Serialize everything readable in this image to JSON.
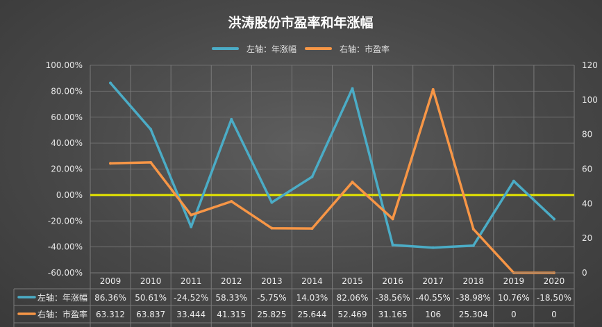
{
  "chart_data": {
    "type": "line",
    "title": "洪涛股份市盈率和年涨幅",
    "categories": [
      "2009",
      "2010",
      "2011",
      "2012",
      "2013",
      "2014",
      "2015",
      "2016",
      "2017",
      "2018",
      "2019",
      "2020"
    ],
    "series": [
      {
        "name": "左轴：年涨幅",
        "axis": "left",
        "color": "#4bacc6",
        "values": [
          86.36,
          50.61,
          -24.52,
          58.33,
          -5.75,
          14.03,
          82.06,
          -38.56,
          -40.55,
          -38.98,
          10.76,
          -18.5
        ],
        "labels": [
          "86.36%",
          "50.61%",
          "-24.52%",
          "58.33%",
          "-5.75%",
          "14.03%",
          "82.06%",
          "-38.56%",
          "-40.55%",
          "-38.98%",
          "10.76%",
          "-18.50%"
        ]
      },
      {
        "name": "右轴：市盈率",
        "axis": "right",
        "color": "#f79646",
        "values": [
          63.312,
          63.837,
          33.444,
          41.315,
          25.825,
          25.644,
          52.469,
          31.165,
          106,
          25.304,
          0,
          0
        ],
        "labels": [
          "63.312",
          "63.837",
          "33.444",
          "41.315",
          "25.825",
          "25.644",
          "52.469",
          "31.165",
          "106",
          "25.304",
          "0",
          "0"
        ]
      }
    ],
    "left_axis": {
      "ylim": [
        -60,
        100
      ],
      "ticks": [
        100,
        80,
        60,
        40,
        20,
        0,
        -20,
        -40,
        -60
      ],
      "tick_labels": [
        "100.00%",
        "80.00%",
        "60.00%",
        "40.00%",
        "20.00%",
        "0.00%",
        "-20.00%",
        "-40.00%",
        "-60.00%"
      ]
    },
    "right_axis": {
      "ylim": [
        0,
        120
      ],
      "ticks": [
        120,
        100,
        80,
        60,
        40,
        20,
        0
      ],
      "tick_labels": [
        "120",
        "100",
        "80",
        "60",
        "40",
        "20",
        "0"
      ]
    },
    "zero_line_color": "#e5e500",
    "grid": true,
    "legend_position": "top-center",
    "data_table": true
  }
}
